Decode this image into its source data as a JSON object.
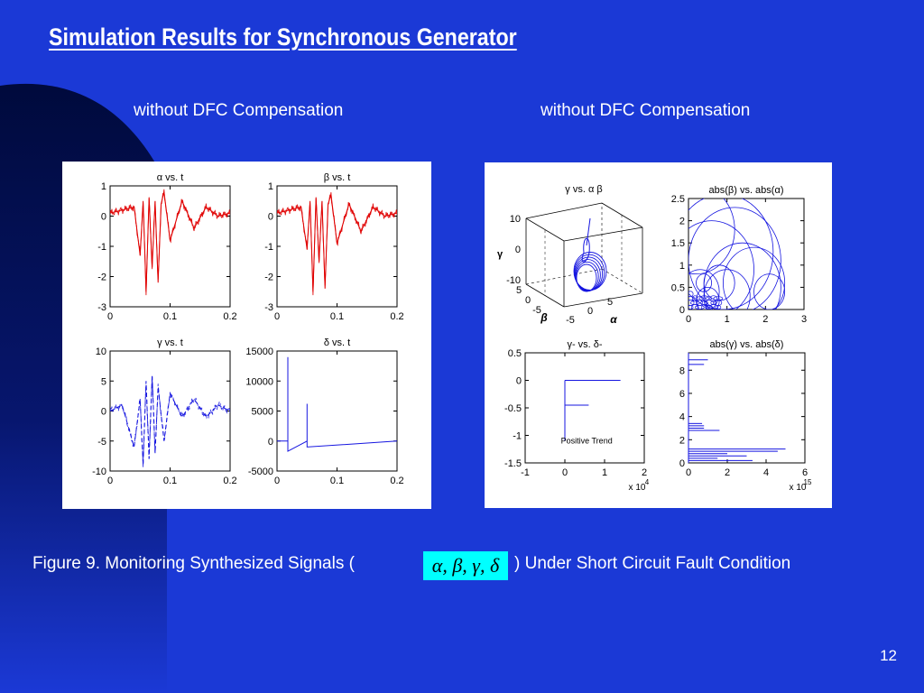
{
  "slide": {
    "title": "Simulation Results for Synchronous Generator",
    "left_caption": "without DFC Compensation",
    "right_caption": "without DFC Compensation",
    "figure_caption_prefix": "Figure 9. Monitoring Synthesized Signals (",
    "figure_caption_symbols": "α, β, γ, δ",
    "figure_caption_suffix": ") Under Short Circuit Fault Condition",
    "page_number": "12",
    "colors": {
      "background": "#1b39d6",
      "decor": "#000a3c",
      "symbol_box": "#00ffff",
      "red_trace": "#e00000",
      "blue_trace": "#1515e0"
    }
  },
  "chart_data": [
    {
      "type": "line",
      "title": "α  vs. t",
      "color": "#e00000",
      "xlim": [
        0,
        0.2
      ],
      "ylim": [
        -3,
        1
      ],
      "xticks": [
        "0",
        "0.1",
        "0.2"
      ],
      "yticks": [
        "1",
        "0",
        "-1",
        "-2",
        "-3"
      ],
      "series": [
        {
          "x": [
            0,
            0.02,
            0.04,
            0.05,
            0.055,
            0.06,
            0.065,
            0.07,
            0.075,
            0.08,
            0.085,
            0.09,
            0.1,
            0.12,
            0.14,
            0.16,
            0.18,
            0.2
          ],
          "y": [
            0.1,
            0.2,
            0.3,
            -1.3,
            0.5,
            -2.5,
            0.6,
            -1.7,
            0.5,
            -2.2,
            0.4,
            0.8,
            -0.8,
            0.5,
            -0.4,
            0.3,
            0.0,
            0.1
          ]
        }
      ]
    },
    {
      "type": "line",
      "title": "β  vs. t",
      "color": "#e00000",
      "xlim": [
        0,
        0.2
      ],
      "ylim": [
        -3,
        1
      ],
      "xticks": [
        "0",
        "0.1",
        "0.2"
      ],
      "yticks": [
        "1",
        "0",
        "-1",
        "-2",
        "-3"
      ],
      "series": [
        {
          "x": [
            0,
            0.02,
            0.04,
            0.05,
            0.055,
            0.06,
            0.065,
            0.07,
            0.075,
            0.08,
            0.085,
            0.09,
            0.1,
            0.12,
            0.14,
            0.16,
            0.18,
            0.2
          ],
          "y": [
            0.1,
            0.2,
            0.3,
            -1.1,
            0.5,
            -2.5,
            0.6,
            -1.5,
            0.5,
            -2.4,
            0.4,
            0.7,
            -0.9,
            0.4,
            -0.5,
            0.3,
            0.0,
            0.1
          ]
        }
      ]
    },
    {
      "type": "line",
      "title": "γ  vs. t",
      "color": "#1515e0",
      "dashed": true,
      "xlim": [
        0,
        0.2
      ],
      "ylim": [
        -10,
        10
      ],
      "xticks": [
        "0",
        "0.1",
        "0.2"
      ],
      "yticks": [
        "10",
        "5",
        "0",
        "-5",
        "-10"
      ],
      "series": [
        {
          "x": [
            0,
            0.02,
            0.04,
            0.05,
            0.055,
            0.06,
            0.065,
            0.07,
            0.075,
            0.08,
            0.09,
            0.1,
            0.12,
            0.14,
            0.16,
            0.18,
            0.2
          ],
          "y": [
            0,
            1,
            -6,
            2,
            -9,
            5,
            -8,
            6,
            -7,
            4,
            -5,
            3,
            -1,
            2,
            -1,
            1,
            0
          ]
        }
      ]
    },
    {
      "type": "line",
      "title": "δ  vs. t",
      "color": "#1515e0",
      "xlim": [
        0,
        0.2
      ],
      "ylim": [
        -5000,
        15000
      ],
      "xticks": [
        "0",
        "0.1",
        "0.2"
      ],
      "yticks": [
        "15000",
        "10000",
        "5000",
        "0",
        "-5000"
      ],
      "series": [
        {
          "x": [
            0,
            0.018,
            0.018,
            0.018,
            0.05,
            0.05,
            0.05,
            0.2
          ],
          "y": [
            0,
            0,
            14000,
            -1700,
            0,
            6200,
            -1000,
            0
          ]
        }
      ]
    },
    {
      "type": "scatter",
      "title": "γ  vs. α  β",
      "projection": "3d",
      "xlabel": "α",
      "ylabel": "β",
      "zlabel": "γ",
      "zticks": [
        "10",
        "0",
        "-10"
      ],
      "yticks": [
        "5",
        "0",
        "-5"
      ],
      "xticks": [
        "-5",
        "0",
        "5"
      ]
    },
    {
      "type": "line",
      "title": "abs(β)  vs.  abs(α)",
      "color": "#1515e0",
      "xlim": [
        0,
        3
      ],
      "ylim": [
        0,
        2.5
      ],
      "xticks": [
        "0",
        "1",
        "2",
        "3"
      ],
      "yticks": [
        "2.5",
        "2",
        "1.5",
        "1",
        "0.5",
        "0"
      ]
    },
    {
      "type": "line",
      "title": "γ-  vs.  δ-",
      "color": "#1515e0",
      "xlim": [
        -1,
        2
      ],
      "ylim": [
        -1.5,
        0.5
      ],
      "xticks": [
        "-1",
        "0",
        "1",
        "2"
      ],
      "yticks": [
        "0.5",
        "0",
        "-0.5",
        "-1",
        "-1.5"
      ],
      "x_multiplier": "x 10",
      "x_multiplier_exp": "4",
      "annotation": "Positive Trend",
      "segments": [
        {
          "x": [
            0,
            0
          ],
          "y": [
            0,
            -1.1
          ]
        },
        {
          "x": [
            0,
            1.4
          ],
          "y": [
            0,
            0
          ]
        },
        {
          "x": [
            0,
            0.6
          ],
          "y": [
            -0.45,
            -0.45
          ]
        }
      ]
    },
    {
      "type": "bar",
      "orientation": "horizontal",
      "title": "abs(γ)  vs.  abs(δ)",
      "color": "#1515e0",
      "xlim": [
        0,
        6
      ],
      "ylim": [
        0,
        9.5
      ],
      "xticks": [
        "0",
        "2",
        "4",
        "6"
      ],
      "yticks": [
        "8",
        "6",
        "4",
        "2",
        "0"
      ],
      "x_multiplier": "x 10",
      "x_multiplier_exp": "15",
      "y": [
        8.9,
        8.5,
        3.4,
        3.2,
        3.0,
        2.8,
        1.2,
        1.0,
        0.8,
        0.6,
        0.4,
        0.2
      ],
      "values": [
        1.0,
        0.8,
        0.7,
        0.8,
        0.8,
        1.6,
        5.0,
        4.6,
        2.0,
        3.0,
        1.5,
        3.3
      ]
    }
  ]
}
